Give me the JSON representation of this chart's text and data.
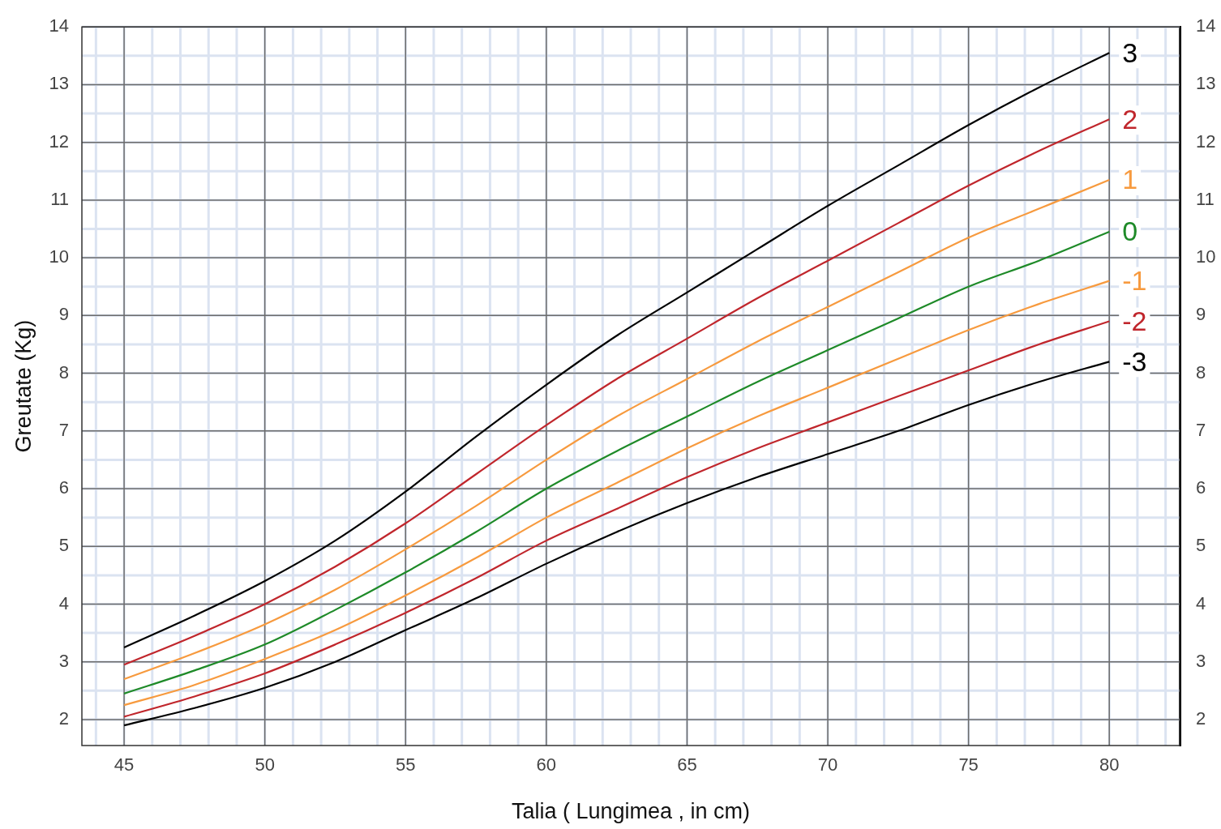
{
  "chart_data": {
    "type": "line",
    "xlabel": "Talia ( Lungimea , in cm)",
    "ylabel": "Greutate (Kg)",
    "x": [
      45,
      47.5,
      50,
      52.5,
      55,
      57.5,
      60,
      62.5,
      65,
      67.5,
      70,
      72.5,
      75,
      77.5,
      80
    ],
    "series": [
      {
        "name": "3",
        "color": "#000000",
        "values": [
          3.25,
          3.8,
          4.4,
          5.1,
          5.95,
          6.9,
          7.8,
          8.65,
          9.4,
          10.15,
          10.9,
          11.6,
          12.3,
          12.95,
          13.55
        ]
      },
      {
        "name": "2",
        "color": "#c0262c",
        "values": [
          2.95,
          3.45,
          4.0,
          4.65,
          5.4,
          6.25,
          7.1,
          7.9,
          8.6,
          9.3,
          9.95,
          10.6,
          11.25,
          11.85,
          12.4
        ]
      },
      {
        "name": "1",
        "color": "#f79a3e",
        "values": [
          2.7,
          3.15,
          3.65,
          4.25,
          4.95,
          5.7,
          6.5,
          7.25,
          7.9,
          8.55,
          9.15,
          9.75,
          10.35,
          10.85,
          11.35
        ]
      },
      {
        "name": "0",
        "color": "#1e8a28",
        "values": [
          2.45,
          2.85,
          3.3,
          3.9,
          4.55,
          5.25,
          6.0,
          6.65,
          7.25,
          7.85,
          8.4,
          8.95,
          9.5,
          9.95,
          10.45
        ]
      },
      {
        "name": "-1",
        "color": "#f79a3e",
        "values": [
          2.25,
          2.6,
          3.05,
          3.55,
          4.15,
          4.8,
          5.5,
          6.1,
          6.7,
          7.25,
          7.75,
          8.25,
          8.75,
          9.2,
          9.6
        ]
      },
      {
        "name": "-2",
        "color": "#c0262c",
        "values": [
          2.05,
          2.4,
          2.8,
          3.3,
          3.85,
          4.45,
          5.1,
          5.65,
          6.2,
          6.7,
          7.15,
          7.6,
          8.05,
          8.5,
          8.9
        ]
      },
      {
        "name": "-3",
        "color": "#000000",
        "values": [
          1.9,
          2.2,
          2.55,
          3.0,
          3.55,
          4.1,
          4.7,
          5.25,
          5.75,
          6.2,
          6.6,
          7.0,
          7.45,
          7.85,
          8.2
        ]
      }
    ],
    "xlim": [
      43.5,
      82.5
    ],
    "xticks": [
      45,
      50,
      55,
      60,
      65,
      70,
      75,
      80
    ],
    "ylim": [
      1.55,
      14
    ],
    "yticks": [
      2,
      3,
      4,
      5,
      6,
      7,
      8,
      9,
      10,
      11,
      12,
      13,
      14
    ],
    "y2lim": [
      1.55,
      14
    ],
    "y2ticks": [
      2,
      3,
      4,
      5,
      6,
      7,
      8,
      9,
      10,
      11,
      12,
      13,
      14
    ],
    "grid": true,
    "legend": false
  }
}
